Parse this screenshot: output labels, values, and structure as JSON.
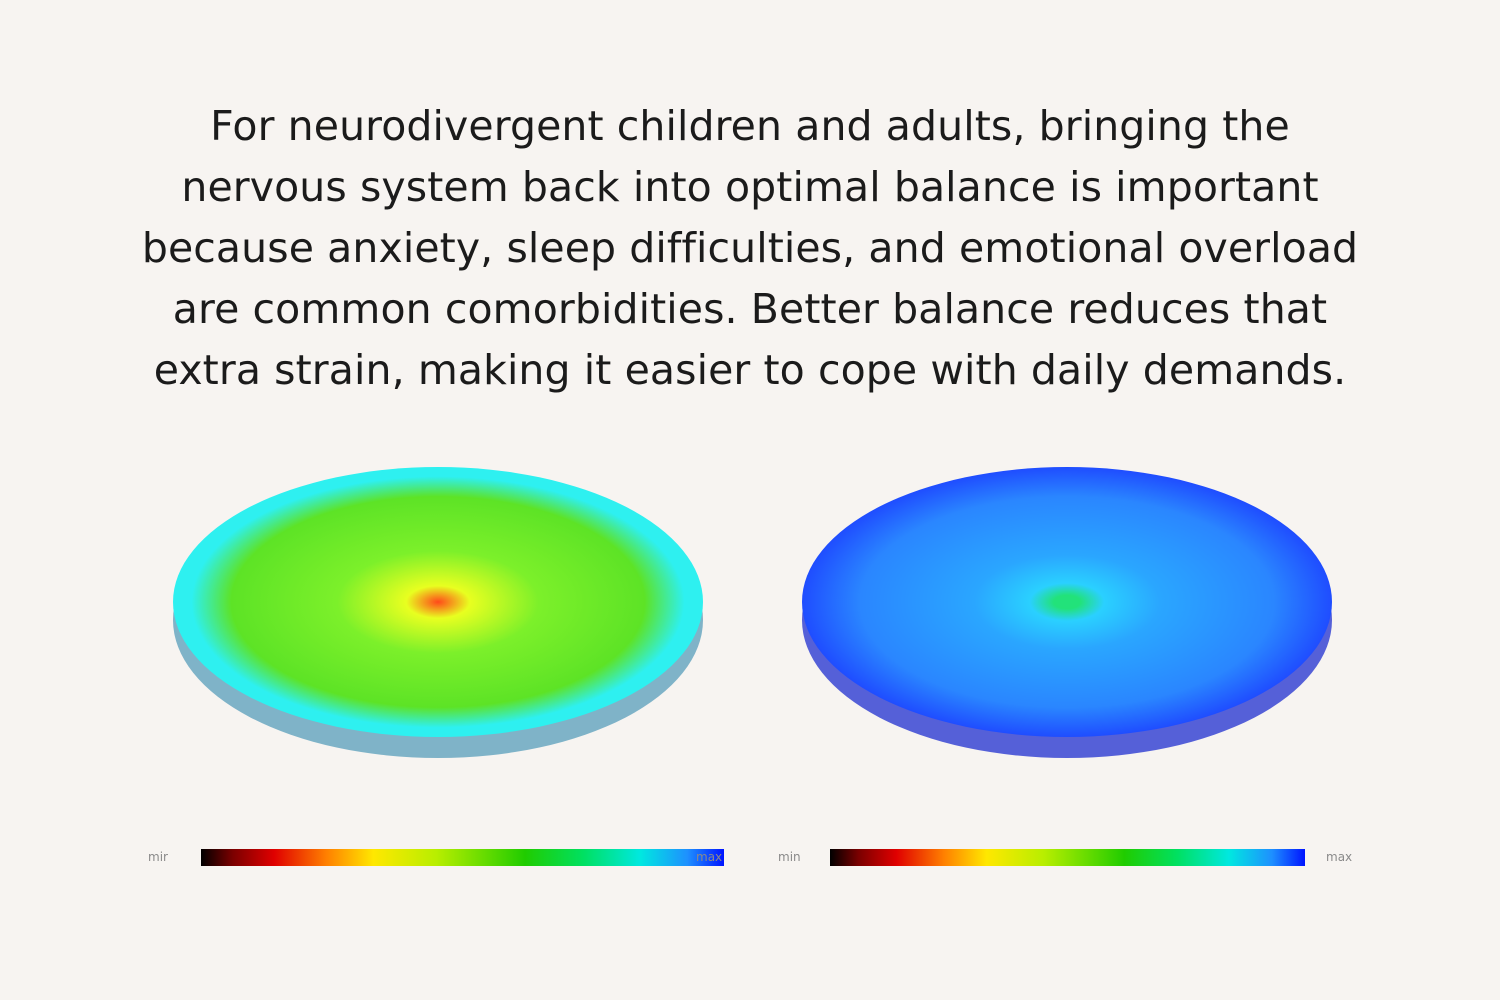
{
  "intro": {
    "lines": [
      "For neurodivergent children and adults, bringing the",
      "nervous system back into optimal balance is important",
      "because anxiety, sleep difficulties, and emotional overload",
      "are common comorbidities. Better balance reduces that",
      "extra strain, making it easier to cope with daily demands."
    ]
  },
  "discs": [
    {
      "colors": {
        "center": "#ff4a1a",
        "inner": "#e8ff20",
        "mid": "#7cf02a",
        "body": "#5de326",
        "rim": "#2ef0f0",
        "edge": "#7fb3c8"
      }
    },
    {
      "colors": {
        "center": "#22e27a",
        "inner": "#2ad0ff",
        "mid": "#2aa6ff",
        "body": "#2a86ff",
        "rim": "#1f4dff",
        "edge": "#5560d8"
      }
    }
  ],
  "scales": [
    {
      "min_label": "mir",
      "max_label": "max"
    },
    {
      "min_label": "min",
      "max_label": "max"
    }
  ]
}
